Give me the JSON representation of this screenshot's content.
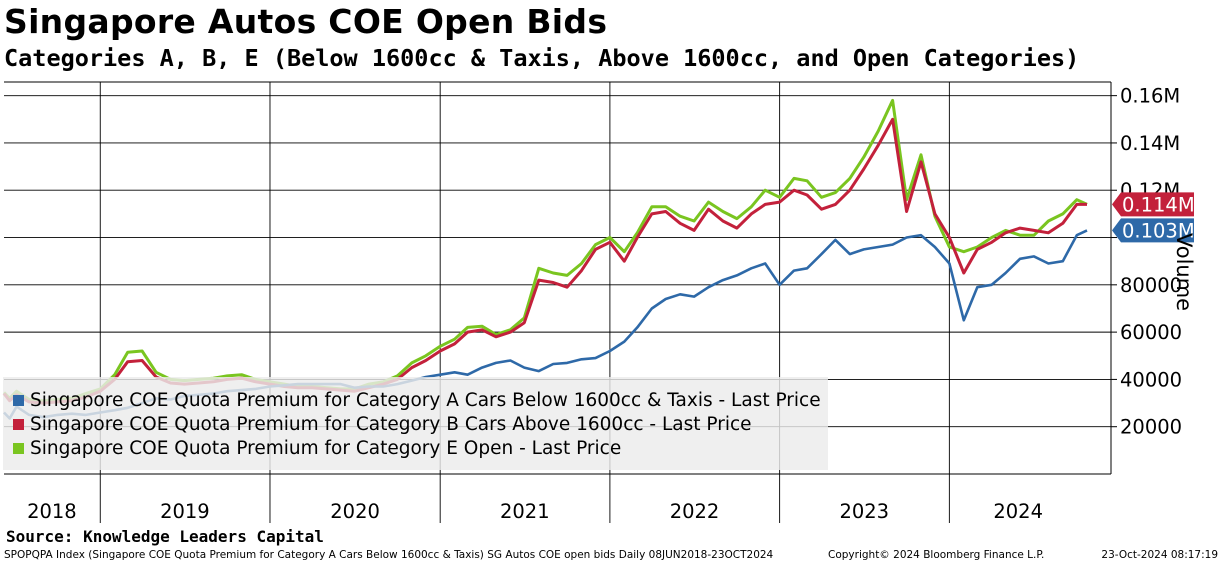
{
  "chart_data": {
    "type": "line",
    "title": "Singapore Autos COE Open Bids",
    "subtitle": "Categories A, B, E (Below 1600cc & Taxis, Above 1600cc, and Open Categories)",
    "ylabel": "Volume",
    "ylim": [
      0,
      170000
    ],
    "y_ticks": [
      20000,
      40000,
      60000,
      80000,
      100000,
      120000,
      140000,
      160000
    ],
    "y_tick_labels": [
      "20000",
      "40000",
      "60000",
      "80000",
      "",
      "0.12M",
      "0.14M",
      "0.16M"
    ],
    "x_range": [
      "2018-06-08",
      "2024-10-23"
    ],
    "x_ticks": [
      "2018",
      "2019",
      "2020",
      "2021",
      "2022",
      "2023",
      "2024"
    ],
    "grid": true,
    "legend_placement": "bottom-left",
    "series": [
      {
        "name": "Singapore COE Quota Premium for Category A Cars Below 1600cc & Taxis - Last Price",
        "color": "#2e69a8",
        "last_value_label": "0.103M",
        "points": [
          [
            "2018-06-08",
            26000
          ],
          [
            "2018-06-20",
            23500
          ],
          [
            "2018-07-05",
            28500
          ],
          [
            "2018-08-01",
            25000
          ],
          [
            "2018-09-01",
            24000
          ],
          [
            "2018-10-01",
            25000
          ],
          [
            "2018-11-01",
            25500
          ],
          [
            "2018-12-01",
            25000
          ],
          [
            "2019-01-01",
            26000
          ],
          [
            "2019-02-01",
            27000
          ],
          [
            "2019-03-01",
            28000
          ],
          [
            "2019-04-01",
            30000
          ],
          [
            "2019-05-01",
            32000
          ],
          [
            "2019-06-01",
            31500
          ],
          [
            "2019-07-01",
            33000
          ],
          [
            "2019-08-01",
            33500
          ],
          [
            "2019-09-01",
            34000
          ],
          [
            "2019-10-01",
            35000
          ],
          [
            "2019-11-01",
            35500
          ],
          [
            "2019-12-01",
            36000
          ],
          [
            "2020-01-01",
            37000
          ],
          [
            "2020-02-01",
            37500
          ],
          [
            "2020-03-01",
            38000
          ],
          [
            "2020-04-01",
            38000
          ],
          [
            "2020-06-01",
            38000
          ],
          [
            "2020-07-01",
            36500
          ],
          [
            "2020-08-01",
            37000
          ],
          [
            "2020-09-01",
            37000
          ],
          [
            "2020-10-01",
            38000
          ],
          [
            "2020-11-01",
            39500
          ],
          [
            "2020-12-01",
            41000
          ],
          [
            "2021-01-01",
            42000
          ],
          [
            "2021-02-01",
            43000
          ],
          [
            "2021-03-01",
            42000
          ],
          [
            "2021-04-01",
            45000
          ],
          [
            "2021-05-01",
            47000
          ],
          [
            "2021-06-01",
            48000
          ],
          [
            "2021-07-01",
            45000
          ],
          [
            "2021-08-01",
            43500
          ],
          [
            "2021-09-01",
            46500
          ],
          [
            "2021-10-01",
            47000
          ],
          [
            "2021-11-01",
            48500
          ],
          [
            "2021-12-01",
            49000
          ],
          [
            "2022-01-01",
            52000
          ],
          [
            "2022-02-01",
            56000
          ],
          [
            "2022-03-01",
            62000
          ],
          [
            "2022-04-01",
            70000
          ],
          [
            "2022-05-01",
            74000
          ],
          [
            "2022-06-01",
            76000
          ],
          [
            "2022-07-01",
            75000
          ],
          [
            "2022-08-01",
            79000
          ],
          [
            "2022-09-01",
            82000
          ],
          [
            "2022-10-01",
            84000
          ],
          [
            "2022-11-01",
            87000
          ],
          [
            "2022-12-01",
            89000
          ],
          [
            "2023-01-01",
            80000
          ],
          [
            "2023-02-01",
            86000
          ],
          [
            "2023-03-01",
            87000
          ],
          [
            "2023-04-01",
            93000
          ],
          [
            "2023-05-01",
            99000
          ],
          [
            "2023-06-01",
            93000
          ],
          [
            "2023-07-01",
            95000
          ],
          [
            "2023-08-01",
            96000
          ],
          [
            "2023-09-01",
            97000
          ],
          [
            "2023-10-01",
            100000
          ],
          [
            "2023-11-01",
            101000
          ],
          [
            "2023-12-01",
            96000
          ],
          [
            "2024-01-01",
            89000
          ],
          [
            "2024-02-01",
            65000
          ],
          [
            "2024-03-01",
            79000
          ],
          [
            "2024-04-01",
            80000
          ],
          [
            "2024-05-01",
            85000
          ],
          [
            "2024-06-01",
            91000
          ],
          [
            "2024-07-01",
            92000
          ],
          [
            "2024-08-01",
            89000
          ],
          [
            "2024-09-01",
            90000
          ],
          [
            "2024-10-01",
            101000
          ],
          [
            "2024-10-23",
            103000
          ]
        ]
      },
      {
        "name": "Singapore COE Quota Premium for Category B Cars Above 1600cc - Last Price",
        "color": "#c3213b",
        "last_value_label": "0.114M",
        "points": [
          [
            "2018-06-08",
            34000
          ],
          [
            "2018-06-20",
            31000
          ],
          [
            "2018-07-05",
            33500
          ],
          [
            "2018-08-01",
            30500
          ],
          [
            "2018-09-01",
            30000
          ],
          [
            "2018-10-01",
            30500
          ],
          [
            "2018-11-01",
            31000
          ],
          [
            "2018-12-01",
            32500
          ],
          [
            "2019-01-01",
            35000
          ],
          [
            "2019-02-01",
            40000
          ],
          [
            "2019-03-01",
            47500
          ],
          [
            "2019-04-01",
            48000
          ],
          [
            "2019-05-01",
            41000
          ],
          [
            "2019-06-01",
            38500
          ],
          [
            "2019-07-01",
            38000
          ],
          [
            "2019-08-01",
            38500
          ],
          [
            "2019-09-01",
            39000
          ],
          [
            "2019-10-01",
            40000
          ],
          [
            "2019-11-01",
            40500
          ],
          [
            "2019-12-01",
            39000
          ],
          [
            "2020-01-01",
            38000
          ],
          [
            "2020-02-01",
            37000
          ],
          [
            "2020-03-01",
            36500
          ],
          [
            "2020-04-01",
            36500
          ],
          [
            "2020-06-01",
            35500
          ],
          [
            "2020-07-01",
            35000
          ],
          [
            "2020-08-01",
            36500
          ],
          [
            "2020-09-01",
            38000
          ],
          [
            "2020-10-01",
            40000
          ],
          [
            "2020-11-01",
            45000
          ],
          [
            "2020-12-01",
            48000
          ],
          [
            "2021-01-01",
            52000
          ],
          [
            "2021-02-01",
            55000
          ],
          [
            "2021-03-01",
            60000
          ],
          [
            "2021-04-01",
            61000
          ],
          [
            "2021-05-01",
            58000
          ],
          [
            "2021-06-01",
            60000
          ],
          [
            "2021-07-01",
            64000
          ],
          [
            "2021-08-01",
            82000
          ],
          [
            "2021-09-01",
            81000
          ],
          [
            "2021-10-01",
            79000
          ],
          [
            "2021-11-01",
            86000
          ],
          [
            "2021-12-01",
            95000
          ],
          [
            "2022-01-01",
            98000
          ],
          [
            "2022-02-01",
            90000
          ],
          [
            "2022-03-01",
            100000
          ],
          [
            "2022-04-01",
            110000
          ],
          [
            "2022-05-01",
            111000
          ],
          [
            "2022-06-01",
            106000
          ],
          [
            "2022-07-01",
            103000
          ],
          [
            "2022-08-01",
            112000
          ],
          [
            "2022-09-01",
            107000
          ],
          [
            "2022-10-01",
            104000
          ],
          [
            "2022-11-01",
            110000
          ],
          [
            "2022-12-01",
            114000
          ],
          [
            "2023-01-01",
            115000
          ],
          [
            "2023-02-01",
            120000
          ],
          [
            "2023-03-01",
            118000
          ],
          [
            "2023-04-01",
            112000
          ],
          [
            "2023-05-01",
            114000
          ],
          [
            "2023-06-01",
            120000
          ],
          [
            "2023-07-01",
            129000
          ],
          [
            "2023-08-01",
            139000
          ],
          [
            "2023-09-01",
            150000
          ],
          [
            "2023-10-01",
            111000
          ],
          [
            "2023-11-01",
            132000
          ],
          [
            "2023-12-01",
            110000
          ],
          [
            "2024-01-01",
            100000
          ],
          [
            "2024-02-01",
            85000
          ],
          [
            "2024-03-01",
            95000
          ],
          [
            "2024-04-01",
            98000
          ],
          [
            "2024-05-01",
            102000
          ],
          [
            "2024-06-01",
            104000
          ],
          [
            "2024-07-01",
            103000
          ],
          [
            "2024-08-01",
            102000
          ],
          [
            "2024-09-01",
            106000
          ],
          [
            "2024-10-01",
            114000
          ],
          [
            "2024-10-23",
            114000
          ]
        ]
      },
      {
        "name": "Singapore COE Quota Premium for Category E Open - Last Price",
        "color": "#7ac520",
        "last_value_label": "",
        "points": [
          [
            "2018-06-08",
            34500
          ],
          [
            "2018-06-20",
            32000
          ],
          [
            "2018-07-05",
            35000
          ],
          [
            "2018-08-01",
            31500
          ],
          [
            "2018-09-01",
            31000
          ],
          [
            "2018-10-01",
            31500
          ],
          [
            "2018-11-01",
            32000
          ],
          [
            "2018-12-01",
            34000
          ],
          [
            "2019-01-01",
            36000
          ],
          [
            "2019-02-01",
            42000
          ],
          [
            "2019-03-01",
            51500
          ],
          [
            "2019-04-01",
            52000
          ],
          [
            "2019-05-01",
            43000
          ],
          [
            "2019-06-01",
            40000
          ],
          [
            "2019-07-01",
            39500
          ],
          [
            "2019-08-01",
            40000
          ],
          [
            "2019-09-01",
            40500
          ],
          [
            "2019-10-01",
            41500
          ],
          [
            "2019-11-01",
            42000
          ],
          [
            "2019-12-01",
            40000
          ],
          [
            "2020-01-01",
            39000
          ],
          [
            "2020-02-01",
            38000
          ],
          [
            "2020-03-01",
            37000
          ],
          [
            "2020-04-01",
            37000
          ],
          [
            "2020-06-01",
            36000
          ],
          [
            "2020-07-01",
            36000
          ],
          [
            "2020-08-01",
            38000
          ],
          [
            "2020-09-01",
            39000
          ],
          [
            "2020-10-01",
            41500
          ],
          [
            "2020-11-01",
            47000
          ],
          [
            "2020-12-01",
            50000
          ],
          [
            "2021-01-01",
            54000
          ],
          [
            "2021-02-01",
            57000
          ],
          [
            "2021-03-01",
            62000
          ],
          [
            "2021-04-01",
            62500
          ],
          [
            "2021-05-01",
            59000
          ],
          [
            "2021-06-01",
            61000
          ],
          [
            "2021-07-01",
            66000
          ],
          [
            "2021-08-01",
            87000
          ],
          [
            "2021-09-01",
            85000
          ],
          [
            "2021-10-01",
            84000
          ],
          [
            "2021-11-01",
            89000
          ],
          [
            "2021-12-01",
            97000
          ],
          [
            "2022-01-01",
            100000
          ],
          [
            "2022-02-01",
            94000
          ],
          [
            "2022-03-01",
            102000
          ],
          [
            "2022-04-01",
            113000
          ],
          [
            "2022-05-01",
            113000
          ],
          [
            "2022-06-01",
            109000
          ],
          [
            "2022-07-01",
            107000
          ],
          [
            "2022-08-01",
            115000
          ],
          [
            "2022-09-01",
            111000
          ],
          [
            "2022-10-01",
            108000
          ],
          [
            "2022-11-01",
            113000
          ],
          [
            "2022-12-01",
            120000
          ],
          [
            "2023-01-01",
            117000
          ],
          [
            "2023-02-01",
            125000
          ],
          [
            "2023-03-01",
            124000
          ],
          [
            "2023-04-01",
            117000
          ],
          [
            "2023-05-01",
            119000
          ],
          [
            "2023-06-01",
            125000
          ],
          [
            "2023-07-01",
            134000
          ],
          [
            "2023-08-01",
            145000
          ],
          [
            "2023-09-01",
            158000
          ],
          [
            "2023-10-01",
            116000
          ],
          [
            "2023-11-01",
            135000
          ],
          [
            "2023-12-01",
            109000
          ],
          [
            "2024-01-01",
            96000
          ],
          [
            "2024-02-01",
            94000
          ],
          [
            "2024-03-01",
            96000
          ],
          [
            "2024-04-01",
            100000
          ],
          [
            "2024-05-01",
            103000
          ],
          [
            "2024-06-01",
            101000
          ],
          [
            "2024-07-01",
            101000
          ],
          [
            "2024-08-01",
            107000
          ],
          [
            "2024-09-01",
            110000
          ],
          [
            "2024-10-01",
            116000
          ],
          [
            "2024-10-23",
            114000
          ]
        ]
      }
    ]
  },
  "source": "Source: Knowledge Leaders Capital",
  "footer": {
    "left": "SPOPQPA Index (Singapore COE Quota Premium for Category A Cars Below 1600cc & Taxis) SG Autos COE open bids  Daily 08JUN2018-23OCT2024",
    "mid": "Copyright© 2024 Bloomberg Finance L.P.",
    "right": "23-Oct-2024 08:17:19"
  }
}
